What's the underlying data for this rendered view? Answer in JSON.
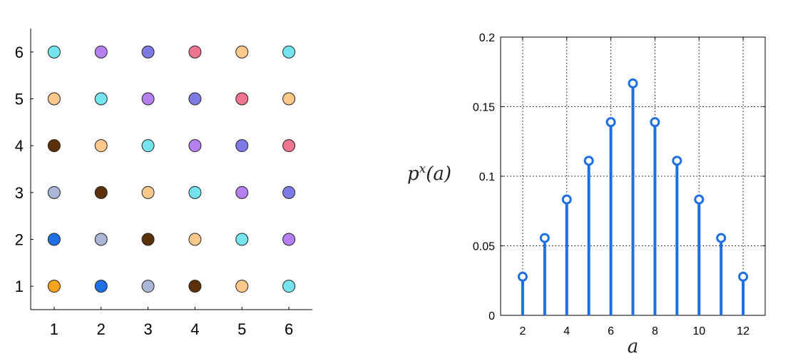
{
  "chart_data": [
    {
      "type": "scatter",
      "x_ticks": [
        "1",
        "2",
        "3",
        "4",
        "5",
        "6"
      ],
      "y_ticks": [
        "1",
        "2",
        "3",
        "4",
        "5",
        "6"
      ],
      "xlim": [
        0.5,
        6.5
      ],
      "ylim": [
        0.5,
        6.5
      ],
      "grid": false,
      "sum_colors": {
        "2": "#f7a21b",
        "3": "#1f6fe6",
        "4": "#a9b6d8",
        "5": "#5c3008",
        "6": "#fdc98a",
        "7": "#74e4ee",
        "8": "#b67ff0",
        "9": "#7d7ae6",
        "10": "#ef7490",
        "11": "#fdc98a",
        "12": "#74e4ee"
      },
      "points": [
        {
          "x": 1,
          "y": 1
        },
        {
          "x": 2,
          "y": 1
        },
        {
          "x": 3,
          "y": 1
        },
        {
          "x": 4,
          "y": 1
        },
        {
          "x": 5,
          "y": 1
        },
        {
          "x": 6,
          "y": 1
        },
        {
          "x": 1,
          "y": 2
        },
        {
          "x": 2,
          "y": 2
        },
        {
          "x": 3,
          "y": 2
        },
        {
          "x": 4,
          "y": 2
        },
        {
          "x": 5,
          "y": 2
        },
        {
          "x": 6,
          "y": 2
        },
        {
          "x": 1,
          "y": 3
        },
        {
          "x": 2,
          "y": 3
        },
        {
          "x": 3,
          "y": 3
        },
        {
          "x": 4,
          "y": 3
        },
        {
          "x": 5,
          "y": 3
        },
        {
          "x": 6,
          "y": 3
        },
        {
          "x": 1,
          "y": 4
        },
        {
          "x": 2,
          "y": 4
        },
        {
          "x": 3,
          "y": 4
        },
        {
          "x": 4,
          "y": 4
        },
        {
          "x": 5,
          "y": 4
        },
        {
          "x": 6,
          "y": 4
        },
        {
          "x": 1,
          "y": 5
        },
        {
          "x": 2,
          "y": 5
        },
        {
          "x": 3,
          "y": 5
        },
        {
          "x": 4,
          "y": 5
        },
        {
          "x": 5,
          "y": 5
        },
        {
          "x": 6,
          "y": 5
        },
        {
          "x": 1,
          "y": 6
        },
        {
          "x": 2,
          "y": 6
        },
        {
          "x": 3,
          "y": 6
        },
        {
          "x": 4,
          "y": 6
        },
        {
          "x": 5,
          "y": 6
        },
        {
          "x": 6,
          "y": 6
        }
      ]
    },
    {
      "type": "stem",
      "x": [
        2,
        3,
        4,
        5,
        6,
        7,
        8,
        9,
        10,
        11,
        12
      ],
      "values": [
        0.0278,
        0.0556,
        0.0833,
        0.1111,
        0.1389,
        0.1667,
        0.1389,
        0.1111,
        0.0833,
        0.0556,
        0.0278
      ],
      "xlabel": "a",
      "ylabel": "p^x(a)",
      "ylabel_base": "p",
      "ylabel_sup": "x",
      "ylabel_arg": "(a)",
      "x_ticks": [
        "2",
        "4",
        "6",
        "8",
        "10",
        "12"
      ],
      "y_ticks": [
        "0",
        "0.05",
        "0.1",
        "0.15",
        "0.2"
      ],
      "xlim": [
        1,
        13
      ],
      "ylim": [
        0,
        0.2
      ],
      "grid": true,
      "color": "#1e6fe0"
    }
  ]
}
